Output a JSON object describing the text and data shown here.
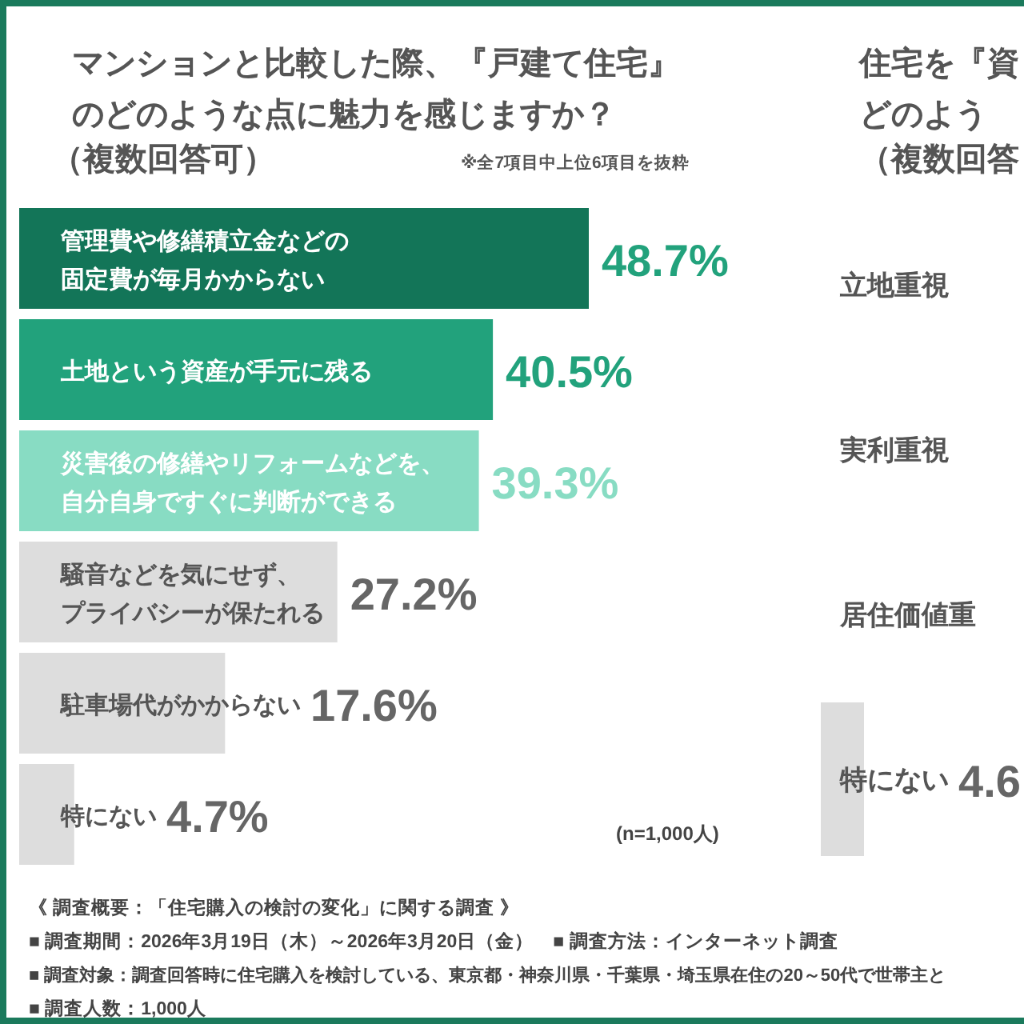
{
  "chart_data": [
    {
      "type": "bar",
      "orientation": "horizontal",
      "title": "マンションと比較した際、『戸建て住宅』のどのような点に魅力を感じますか？",
      "subtitle": "（複数回答可）",
      "categories": [
        "管理費や修繕積立金などの固定費が毎月かからない",
        "土地という資産が手元に残る",
        "災害後の修繕やリフォームなどを、自分自身ですぐに判断ができる",
        "騒音などを気にせず、プライバシーが保たれる",
        "駐車場代がかからない",
        "特にない"
      ],
      "values": [
        48.7,
        40.5,
        39.3,
        27.2,
        17.6,
        4.7
      ],
      "value_labels": [
        "48.7%",
        "40.5%",
        "39.3%",
        "27.2%",
        "17.6%",
        "4.7%"
      ],
      "colors": [
        "#137558",
        "#22a27c",
        "#88dcc3",
        "#dddddd",
        "#dddddd",
        "#dddddd"
      ],
      "annotations": [
        "※全7項目中上位6項目を抜粋",
        "(n=1,000人)",
        "《 調査概要：「住宅購入の検討の変化」に関する調査 》",
        "■ 調査期間：2026年3月19日（木）～2026年3月20日（金）　■ 調査方法：インターネット調査",
        "■ 調査対象：調査回答時に住宅購入を検討している、東京都・神奈川県・千葉県・埼玉県在住の20～50代で世帯主と",
        "■ 調査人数：1,000人"
      ]
    },
    {
      "type": "bar",
      "orientation": "horizontal",
      "title": "住宅を『資どのよう",
      "subtitle": "（複数回答",
      "categories": [
        "立地重視",
        "実利重視",
        "居住価値重",
        "特にない"
      ],
      "values": [
        null,
        null,
        null,
        4.6
      ],
      "value_labels": [
        null,
        null,
        null,
        "4.6"
      ],
      "colors": [
        "#137558",
        "#22a27c",
        "#88dcc3",
        "#dddddd"
      ]
    }
  ]
}
